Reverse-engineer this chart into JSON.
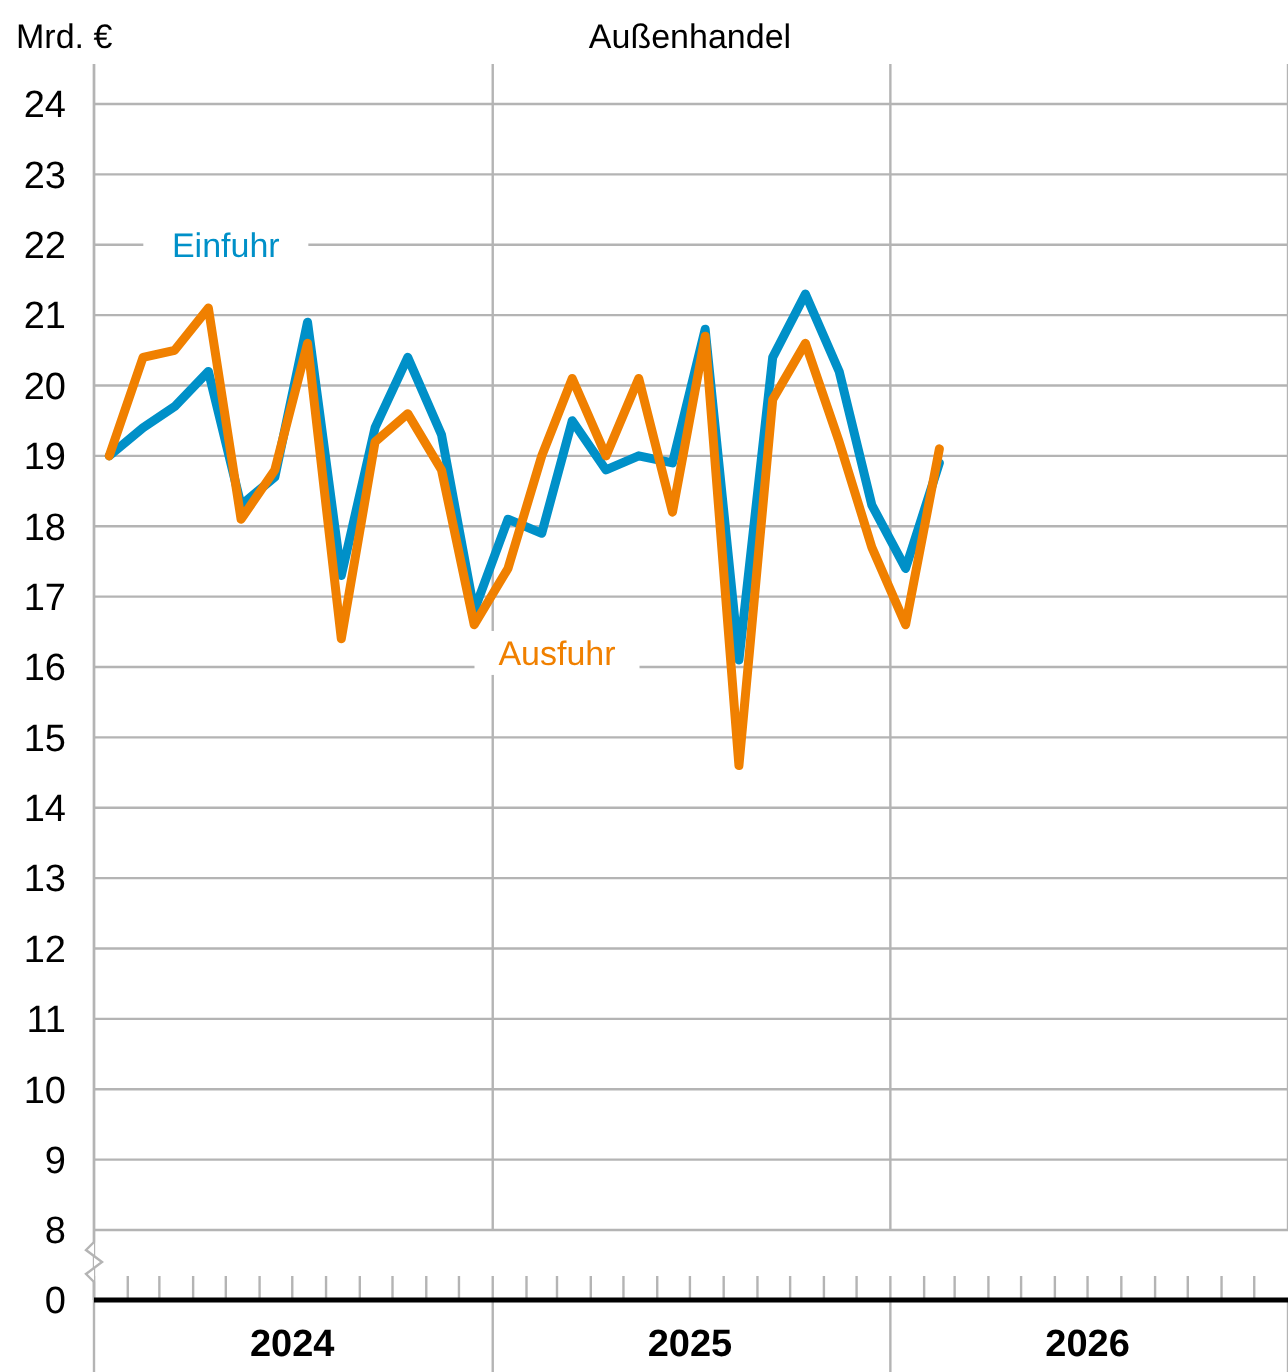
{
  "chart_data": {
    "type": "line",
    "title": "Außenhandel",
    "ylabel": "Mrd. €",
    "x": [
      "2024-01-15",
      "2024-02-15",
      "2024-03-15",
      "2024-04-15",
      "2024-05-15",
      "2024-06-15",
      "2024-07-15",
      "2024-08-15",
      "2024-09-15",
      "2024-10-15",
      "2024-11-15",
      "2024-12-15",
      "2025-01-15",
      "2025-02-15",
      "2025-03-15",
      "2025-04-15",
      "2025-05-15",
      "2025-06-15",
      "2025-07-15",
      "2025-08-15",
      "2025-09-15",
      "2025-10-15",
      "2025-11-15",
      "2025-12-15",
      "2026-01-15",
      "2026-02-15"
    ],
    "series": [
      {
        "name": "Einfuhr",
        "color": "#0090c8",
        "values": [
          19.0,
          19.4,
          19.7,
          20.2,
          18.3,
          18.7,
          20.9,
          17.3,
          19.4,
          20.4,
          19.3,
          16.8,
          18.1,
          17.9,
          19.5,
          18.8,
          19.0,
          18.9,
          20.8,
          16.1,
          20.4,
          21.3,
          20.2,
          18.3,
          17.4,
          18.9
        ]
      },
      {
        "name": "Ausfuhr",
        "color": "#f08000",
        "values": [
          19.0,
          20.4,
          20.5,
          21.1,
          18.1,
          18.8,
          20.6,
          16.4,
          19.2,
          19.6,
          18.8,
          16.6,
          17.4,
          19.0,
          20.1,
          19.0,
          20.1,
          18.2,
          20.7,
          14.6,
          19.8,
          20.6,
          19.2,
          17.7,
          16.6,
          19.1
        ]
      }
    ],
    "xlim": [
      "2024-01-01",
      "2027-01-01"
    ],
    "xticks": [
      {
        "value": "2024-01-01",
        "label": null
      },
      {
        "value": "2024-07-01",
        "label": "2024"
      },
      {
        "value": "2025-01-01",
        "label": null
      },
      {
        "value": "2025-07-01",
        "label": "2025"
      },
      {
        "value": "2026-01-01",
        "label": null
      },
      {
        "value": "2026-07-01",
        "label": "2026"
      },
      {
        "value": "2027-01-01",
        "label": null
      }
    ],
    "ylim": [
      8,
      24
    ],
    "yticks": [
      8,
      9,
      10,
      11,
      12,
      13,
      14,
      15,
      16,
      17,
      18,
      19,
      20,
      21,
      22,
      23,
      24
    ],
    "annotations": [
      "0"
    ],
    "grid": true,
    "legend": false,
    "marker": "none",
    "line_style": "solid"
  }
}
